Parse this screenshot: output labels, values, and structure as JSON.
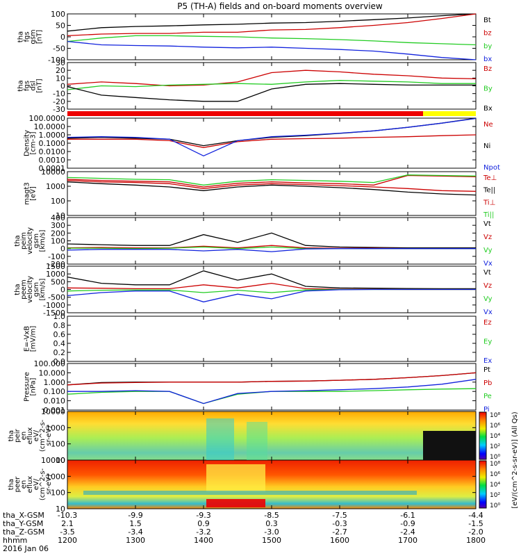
{
  "title": "P5 (TH-A) fields and on-board moments overview",
  "colors": {
    "black": "#000000",
    "red": "#cc0000",
    "green": "#22cc22",
    "blue": "#1122dd",
    "yellow": "#ffff00",
    "stripe_red": "#ee0000",
    "orange_red": "#cc3311"
  },
  "panels": [
    {
      "id": "fgs-gsm",
      "ylabel": [
        "tha",
        "fgs",
        "gsm",
        "[nT]"
      ],
      "ylim": [
        -100,
        100
      ],
      "ticks": [
        "100",
        "50",
        "0",
        "-50",
        "-100"
      ],
      "tick_values": [
        100,
        50,
        0,
        -50,
        -100
      ],
      "legend": [
        {
          "text": "Bt",
          "color": "#000000"
        },
        {
          "text": "bz",
          "color": "#cc0000"
        },
        {
          "text": "by",
          "color": "#22cc22"
        },
        {
          "text": "bx",
          "color": "#1122dd"
        }
      ]
    },
    {
      "id": "fgs-dsl",
      "ylabel": [
        "tha",
        "fgs",
        "dsl",
        "[nT]"
      ],
      "ylim": [
        -30,
        30
      ],
      "ticks": [
        "30",
        "20",
        "10",
        "0",
        "-10",
        "-20",
        "-30"
      ],
      "tick_values": [
        30,
        20,
        10,
        0,
        -10,
        -20,
        -30
      ],
      "legend": [
        {
          "text": "Bz",
          "color": "#cc0000"
        },
        {
          "text": "By",
          "color": "#22cc22"
        },
        {
          "text": "Bx",
          "color": "#000000"
        }
      ]
    },
    {
      "id": "density",
      "ylabel": [
        "Density",
        "[cm-3]"
      ],
      "ylim": [
        0.0001,
        100
      ],
      "log": true,
      "ticks": [
        "100.0000",
        "10.0000",
        "1.0000",
        "0.1000",
        "0.0100",
        "0.0010",
        "0.0001"
      ],
      "tick_values": [
        100,
        10,
        1,
        0.1,
        0.01,
        0.001,
        0.0001
      ],
      "legend": [
        {
          "text": "Ne",
          "color": "#cc0000"
        },
        {
          "text": "Ni",
          "color": "#000000"
        },
        {
          "text": "Npot",
          "color": "#1122dd"
        }
      ]
    },
    {
      "id": "temperature",
      "ylabel": [
        "magt3",
        "[eV]"
      ],
      "ylim": [
        10,
        10000
      ],
      "log": true,
      "ticks": [
        "10000",
        "1000",
        "100",
        "10"
      ],
      "tick_values": [
        10000,
        1000,
        100,
        10
      ],
      "legend": [
        {
          "text": "Te⊥",
          "color": "#cc0000"
        },
        {
          "text": "Te||",
          "color": "#000000"
        },
        {
          "text": "Ti⊥",
          "color": "#cc0000"
        },
        {
          "text": "Ti||",
          "color": "#22cc22"
        }
      ]
    },
    {
      "id": "peim-velocity",
      "ylabel": [
        "tha",
        "peim",
        "velocity",
        "gsm",
        "[km/s]"
      ],
      "ylim": [
        -200,
        400
      ],
      "ticks": [
        "400",
        "300",
        "200",
        "100",
        "0",
        "-100",
        "-200"
      ],
      "tick_values": [
        400,
        300,
        200,
        100,
        0,
        -100,
        -200
      ],
      "legend": [
        {
          "text": "Vt",
          "color": "#000000"
        },
        {
          "text": "Vz",
          "color": "#cc0000"
        },
        {
          "text": "Vy",
          "color": "#22cc22"
        },
        {
          "text": "Vx",
          "color": "#1122dd"
        }
      ]
    },
    {
      "id": "peem-velocity",
      "ylabel": [
        "tha",
        "peem",
        "velocity",
        "gsm",
        "[km/s]"
      ],
      "ylim": [
        -1500,
        1500
      ],
      "ticks": [
        "1500",
        "1000",
        "500",
        "0",
        "-500",
        "-1000",
        "-1500"
      ],
      "tick_values": [
        1500,
        1000,
        500,
        0,
        -500,
        -1000,
        -1500
      ],
      "legend": [
        {
          "text": "Vt",
          "color": "#000000"
        },
        {
          "text": "Vz",
          "color": "#cc0000"
        },
        {
          "text": "Vy",
          "color": "#22cc22"
        },
        {
          "text": "Vx",
          "color": "#1122dd"
        }
      ]
    },
    {
      "id": "efield",
      "ylabel": [
        "E=-VxB",
        "[mV/m]"
      ],
      "ylim": [
        0,
        1
      ],
      "ticks": [
        "1.0",
        "0.8",
        "0.6",
        "0.4",
        "0.2",
        "0.0"
      ],
      "tick_values": [
        1.0,
        0.8,
        0.6,
        0.4,
        0.2,
        0.0
      ],
      "legend": [
        {
          "text": "Ez",
          "color": "#cc0000"
        },
        {
          "text": "Ey",
          "color": "#22cc22"
        },
        {
          "text": "Ex",
          "color": "#1122dd"
        }
      ]
    },
    {
      "id": "pressure",
      "ylabel": [
        "Pressure",
        "[nPa]"
      ],
      "ylim": [
        0.001,
        100
      ],
      "log": true,
      "ticks": [
        "100.000",
        "10.000",
        "1.000",
        "0.100",
        "0.010",
        "0.001"
      ],
      "tick_values": [
        100,
        10,
        1,
        0.1,
        0.01,
        0.001
      ],
      "legend": [
        {
          "text": "Pt",
          "color": "#000000"
        },
        {
          "text": "Pb",
          "color": "#cc0000"
        },
        {
          "text": "Pe",
          "color": "#22cc22"
        },
        {
          "text": "Pi",
          "color": "#1122dd"
        }
      ]
    },
    {
      "id": "peir-spectrogram",
      "ylabel": [
        "tha",
        "peir",
        "en",
        "eflux",
        "eV/",
        "(cm^2-s-",
        "sr-eV)"
      ],
      "ylim": [
        10,
        10000
      ],
      "log": true,
      "ticks": [
        "10000",
        "1000",
        "100",
        "10"
      ],
      "tick_values": [
        10000,
        1000,
        100,
        10
      ]
    },
    {
      "id": "peer-spectrogram",
      "ylabel": [
        "tha",
        "peer",
        "en",
        "eflux",
        "eV/",
        "(cm^2-s-",
        "sr-eV)"
      ],
      "ylim": [
        10,
        10000
      ],
      "log": true,
      "ticks": [
        "10000",
        "1000",
        "100",
        "10"
      ],
      "tick_values": [
        10000,
        1000,
        100,
        10
      ]
    }
  ],
  "colorbar": {
    "label": "[eV/(cm^2-s-sr-eV)] (All Qs)",
    "ticks_top": [
      "10⁸",
      "10⁶",
      "10⁴",
      "10²",
      "10⁰"
    ],
    "ticks_bottom": [
      "10⁸",
      "10⁶",
      "10⁴",
      "10²",
      "10⁰"
    ]
  },
  "xaxis": {
    "rows": [
      {
        "label": "tha_X-GSM",
        "values": [
          "-10.3",
          "-9.9",
          "-9.3",
          "-8.5",
          "-7.5",
          "-6.1",
          "-4.4"
        ]
      },
      {
        "label": "tha_Y-GSM",
        "values": [
          "2.1",
          "1.5",
          "0.9",
          "0.3",
          "-0.3",
          "-0.9",
          "-1.5"
        ]
      },
      {
        "label": "tha_Z-GSM",
        "values": [
          "-3.5",
          "-3.4",
          "-3.2",
          "-3.0",
          "-2.7",
          "-2.4",
          "-2.0"
        ]
      },
      {
        "label": "hhmm",
        "values": [
          "1200",
          "1300",
          "1400",
          "1500",
          "1600",
          "1700",
          "1800"
        ]
      }
    ],
    "date": "2016 Jan 06"
  },
  "chart_data": [
    {
      "type": "line",
      "title": "P5 (TH-A) fields and on-board moments overview",
      "ylabel": "tha fgs gsm [nT]",
      "x": [
        "1200",
        "1230",
        "1300",
        "1330",
        "1400",
        "1430",
        "1500",
        "1530",
        "1600",
        "1630",
        "1700",
        "1730",
        "1800"
      ],
      "ylim": [
        -100,
        100
      ],
      "series": [
        {
          "name": "Bt",
          "values": [
            25,
            40,
            45,
            48,
            52,
            55,
            60,
            62,
            68,
            75,
            82,
            92,
            100
          ]
        },
        {
          "name": "bz",
          "values": [
            5,
            12,
            15,
            15,
            20,
            20,
            30,
            32,
            40,
            50,
            62,
            80,
            100
          ]
        },
        {
          "name": "by",
          "values": [
            -20,
            -5,
            5,
            5,
            2,
            0,
            -5,
            -8,
            -12,
            -18,
            -25,
            -30,
            -35
          ]
        },
        {
          "name": "bx",
          "values": [
            -20,
            -35,
            -38,
            -40,
            -45,
            -48,
            -45,
            -50,
            -55,
            -62,
            -75,
            -90,
            -100
          ]
        }
      ]
    },
    {
      "type": "line",
      "ylabel": "tha fgs dsl [nT]",
      "x": [
        "1200",
        "1230",
        "1300",
        "1330",
        "1400",
        "1430",
        "1500",
        "1530",
        "1600",
        "1630",
        "1700",
        "1730",
        "1800"
      ],
      "ylim": [
        -30,
        30
      ],
      "series": [
        {
          "name": "Bz",
          "values": [
            2,
            5,
            3,
            0,
            1,
            5,
            17,
            20,
            18,
            15,
            13,
            10,
            9
          ]
        },
        {
          "name": "By",
          "values": [
            -5,
            0,
            -1,
            1,
            2,
            3,
            2,
            5,
            7,
            6,
            5,
            3,
            3
          ]
        },
        {
          "name": "Bx",
          "values": [
            -1,
            -12,
            -15,
            -18,
            -20,
            -20,
            -4,
            2,
            3,
            2,
            1,
            1,
            1
          ]
        }
      ]
    },
    {
      "type": "line",
      "ylabel": "Density [cm-3]",
      "x": [
        "1200",
        "1230",
        "1300",
        "1330",
        "1400",
        "1430",
        "1500",
        "1530",
        "1600",
        "1630",
        "1700",
        "1730",
        "1800"
      ],
      "ylim": [
        0.0001,
        100
      ],
      "series": [
        {
          "name": "Ne",
          "values": [
            0.3,
            0.3,
            0.3,
            0.2,
            0.03,
            0.15,
            0.3,
            0.35,
            0.4,
            0.5,
            0.6,
            0.8,
            1.0
          ]
        },
        {
          "name": "Ni",
          "values": [
            0.4,
            0.5,
            0.4,
            0.3,
            0.05,
            0.2,
            0.5,
            0.8,
            1.5,
            3,
            8,
            25,
            100
          ]
        },
        {
          "name": "Npot",
          "values": [
            0.5,
            0.6,
            0.5,
            0.3,
            0.003,
            0.2,
            0.6,
            0.9,
            1.6,
            3,
            8,
            25,
            90
          ]
        }
      ]
    },
    {
      "type": "line",
      "ylabel": "magt3 [eV]",
      "x": [
        "1200",
        "1230",
        "1300",
        "1330",
        "1400",
        "1430",
        "1500",
        "1530",
        "1600",
        "1630",
        "1700",
        "1730",
        "1800"
      ],
      "ylim": [
        10,
        10000
      ],
      "series": [
        {
          "name": "Te⊥",
          "values": [
            2500,
            2000,
            1800,
            1500,
            700,
            1200,
            1500,
            1300,
            1100,
            900,
            700,
            500,
            450
          ]
        },
        {
          "name": "Te||",
          "values": [
            2000,
            1500,
            1200,
            900,
            500,
            900,
            1200,
            1000,
            800,
            600,
            400,
            300,
            250
          ]
        },
        {
          "name": "Ti⊥",
          "values": [
            3000,
            2500,
            2200,
            2000,
            900,
            1600,
            2000,
            1700,
            1500,
            1200,
            5500,
            5000,
            4500
          ]
        },
        {
          "name": "Ti||",
          "values": [
            4000,
            3500,
            3000,
            2800,
            1200,
            2200,
            2800,
            2500,
            2200,
            1800,
            6000,
            5500,
            5000
          ]
        }
      ]
    },
    {
      "type": "line",
      "ylabel": "tha peim velocity gsm [km/s]",
      "x": [
        "1200",
        "1230",
        "1300",
        "1330",
        "1400",
        "1430",
        "1500",
        "1530",
        "1600",
        "1630",
        "1700",
        "1730",
        "1800"
      ],
      "ylim": [
        -200,
        400
      ],
      "series": [
        {
          "name": "Vt",
          "values": [
            60,
            50,
            40,
            40,
            180,
            80,
            200,
            40,
            20,
            15,
            10,
            10,
            10
          ]
        },
        {
          "name": "Vz",
          "values": [
            10,
            15,
            10,
            10,
            30,
            10,
            40,
            10,
            5,
            5,
            0,
            0,
            0
          ]
        },
        {
          "name": "Vy",
          "values": [
            5,
            5,
            0,
            5,
            20,
            0,
            20,
            0,
            0,
            0,
            0,
            0,
            0
          ]
        },
        {
          "name": "Vx",
          "values": [
            -20,
            -10,
            -10,
            -10,
            -30,
            -10,
            -40,
            -5,
            0,
            0,
            0,
            0,
            0
          ]
        }
      ]
    },
    {
      "type": "line",
      "ylabel": "tha peem velocity gsm [km/s]",
      "x": [
        "1200",
        "1230",
        "1300",
        "1330",
        "1400",
        "1430",
        "1500",
        "1530",
        "1600",
        "1630",
        "1700",
        "1730",
        "1800"
      ],
      "ylim": [
        -1500,
        1500
      ],
      "series": [
        {
          "name": "Vt",
          "values": [
            800,
            400,
            300,
            300,
            1200,
            600,
            1000,
            200,
            100,
            80,
            60,
            50,
            50
          ]
        },
        {
          "name": "Vz",
          "values": [
            100,
            80,
            50,
            50,
            300,
            100,
            400,
            50,
            20,
            10,
            0,
            0,
            0
          ]
        },
        {
          "name": "Vy",
          "values": [
            -100,
            -50,
            -30,
            -30,
            -200,
            -50,
            -200,
            -30,
            0,
            0,
            0,
            0,
            0
          ]
        },
        {
          "name": "Vx",
          "values": [
            -400,
            -200,
            -100,
            -100,
            -800,
            -300,
            -600,
            -100,
            -20,
            0,
            0,
            0,
            0
          ]
        }
      ]
    },
    {
      "type": "line",
      "ylabel": "E=-VxB [mV/m]",
      "ylim": [
        0,
        1
      ],
      "series": [
        {
          "name": "Ez",
          "values": []
        },
        {
          "name": "Ey",
          "values": []
        },
        {
          "name": "Ex",
          "values": []
        }
      ]
    },
    {
      "type": "line",
      "ylabel": "Pressure [nPa]",
      "x": [
        "1200",
        "1230",
        "1300",
        "1330",
        "1400",
        "1430",
        "1500",
        "1530",
        "1600",
        "1630",
        "1700",
        "1730",
        "1800"
      ],
      "ylim": [
        0.001,
        100
      ],
      "series": [
        {
          "name": "Pt",
          "values": [
            0.5,
            0.9,
            1.0,
            1.0,
            1.0,
            1.0,
            1.2,
            1.3,
            1.6,
            2.0,
            3.0,
            5.0,
            10
          ]
        },
        {
          "name": "Pb",
          "values": [
            0.5,
            0.8,
            0.9,
            1.0,
            1.0,
            1.0,
            1.2,
            1.3,
            1.6,
            2.0,
            3.0,
            5.0,
            10
          ]
        },
        {
          "name": "Pe",
          "values": [
            0.05,
            0.08,
            0.1,
            0.1,
            0.005,
            0.05,
            0.1,
            0.1,
            0.1,
            0.12,
            0.15,
            0.18,
            0.2
          ]
        },
        {
          "name": "Pi",
          "values": [
            0.1,
            0.1,
            0.12,
            0.1,
            0.005,
            0.06,
            0.1,
            0.12,
            0.15,
            0.2,
            0.3,
            0.6,
            2.0
          ]
        }
      ]
    },
    {
      "type": "heatmap",
      "ylabel": "tha peir en eflux eV/(cm^2-s-sr-eV)",
      "x": [
        "1200",
        "1300",
        "1400",
        "1500",
        "1600",
        "1700",
        "1800"
      ],
      "ylim": [
        10,
        10000
      ]
    },
    {
      "type": "heatmap",
      "ylabel": "tha peer en eflux eV/(cm^2-s-sr-eV)",
      "x": [
        "1200",
        "1300",
        "1400",
        "1500",
        "1600",
        "1700",
        "1800"
      ],
      "ylim": [
        10,
        10000
      ]
    }
  ]
}
